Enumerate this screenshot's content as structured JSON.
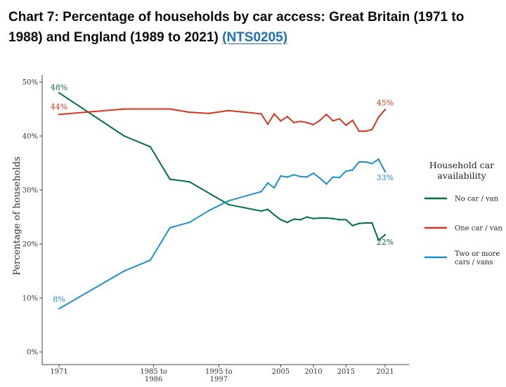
{
  "page": {
    "title_text": "Chart 7: Percentage of households by car access: Great Britain (1971 to 1988) and England (1989 to 2021) ",
    "title_link": "(NTS0205)"
  },
  "chart_data": {
    "type": "line",
    "ylabel": "Percentage of households",
    "ylim": [
      0,
      50
    ],
    "yticks": [
      "0%",
      "10%",
      "20%",
      "30%",
      "40%",
      "50%"
    ],
    "xlim": [
      1970,
      2023
    ],
    "xticks": [
      {
        "pos": 1971,
        "label": "1971",
        "label2": ""
      },
      {
        "pos": 1985.5,
        "label": "1985 to",
        "label2": "1986"
      },
      {
        "pos": 1995.5,
        "label": "1995 to",
        "label2": "1997"
      },
      {
        "pos": 2005,
        "label": "2005",
        "label2": ""
      },
      {
        "pos": 2010,
        "label": "2010",
        "label2": ""
      },
      {
        "pos": 2015,
        "label": "2015",
        "label2": ""
      },
      {
        "pos": 2021,
        "label": "2021",
        "label2": ""
      }
    ],
    "legend_title": [
      "Household car",
      "availability"
    ],
    "series": [
      {
        "name": "No car / van",
        "color": "#00703c",
        "x": [
          1971,
          1981,
          1985,
          1988,
          1991,
          1997,
          2002,
          2003,
          2004,
          2005,
          2006,
          2007,
          2008,
          2009,
          2010,
          2011,
          2012,
          2013,
          2014,
          2015,
          2016,
          2017,
          2018,
          2019,
          2020,
          2021
        ],
        "values": [
          48,
          40,
          38,
          32,
          31.5,
          27.3,
          26.1,
          26.4,
          25.4,
          24.5,
          24.0,
          24.6,
          24.5,
          25.0,
          24.7,
          24.8,
          24.8,
          24.7,
          24.5,
          24.5,
          23.4,
          23.8,
          23.9,
          23.9,
          20.7,
          21.7
        ],
        "start_label": "48%",
        "end_label": "22%"
      },
      {
        "name": "One car / van",
        "color": "#d4351c",
        "x": [
          1971,
          1981,
          1985,
          1988,
          1991,
          1994,
          1997,
          2002,
          2003,
          2004,
          2005,
          2006,
          2007,
          2008,
          2009,
          2010,
          2011,
          2012,
          2013,
          2014,
          2015,
          2016,
          2017,
          2018,
          2019,
          2020,
          2021
        ],
        "values": [
          44,
          45,
          45,
          45,
          44.4,
          44.2,
          44.7,
          44.1,
          42.2,
          44.1,
          42.8,
          43.6,
          42.5,
          42.7,
          42.5,
          42.1,
          42.9,
          44.0,
          42.8,
          43.2,
          42.0,
          42.9,
          40.9,
          40.9,
          41.2,
          43.5,
          44.9
        ],
        "start_label": "44%",
        "end_label": "45%"
      },
      {
        "name": "Two or more cars / vans",
        "color": "#1d8fcb",
        "x": [
          1971,
          1981,
          1985,
          1988,
          1991,
          1994,
          1997,
          2002,
          2003,
          2004,
          2005,
          2006,
          2007,
          2008,
          2009,
          2010,
          2011,
          2012,
          2013,
          2014,
          2015,
          2016,
          2017,
          2018,
          2019,
          2020,
          2021
        ],
        "values": [
          8,
          15,
          17,
          23,
          24,
          26.2,
          28,
          29.7,
          31.3,
          30.4,
          32.6,
          32.4,
          32.8,
          32.5,
          32.4,
          33.1,
          32.2,
          31.1,
          32.4,
          32.3,
          33.5,
          33.7,
          35.2,
          35.2,
          34.9,
          35.7,
          33.4
        ],
        "start_label": "8%",
        "end_label": "33%"
      }
    ]
  }
}
